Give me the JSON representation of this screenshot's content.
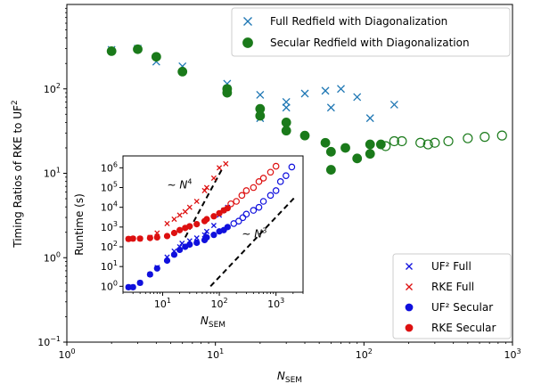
{
  "chart_data": [
    {
      "type": "scatter",
      "xscale": "log",
      "yscale": "log",
      "xlim": [
        1,
        1000
      ],
      "ylim": [
        0.1,
        1000
      ],
      "xlabel": "N_SEM",
      "ylabel": "Timing Ratios of RKE to UF²",
      "xticks": [
        {
          "v": 1,
          "label": "10^0"
        },
        {
          "v": 10,
          "label": "10^1"
        },
        {
          "v": 100,
          "label": "10^2"
        },
        {
          "v": 1000,
          "label": "10^3"
        }
      ],
      "yticks": [
        {
          "v": 0.1,
          "label": "10^-1"
        },
        {
          "v": 1,
          "label": "10^0"
        },
        {
          "v": 10,
          "label": "10^1"
        },
        {
          "v": 100,
          "label": "10^2"
        }
      ],
      "legend_position": "top-right",
      "series": [
        {
          "name": "Full Redfield with Diagonalization",
          "color": "#1f77b4",
          "marker": "x",
          "points": [
            [
              2,
              290
            ],
            [
              3,
              300
            ],
            [
              4,
              210
            ],
            [
              6,
              185
            ],
            [
              12,
              115
            ],
            [
              12,
              100
            ],
            [
              20,
              45
            ],
            [
              20,
              85
            ],
            [
              30,
              70
            ],
            [
              30,
              60
            ],
            [
              40,
              88
            ],
            [
              55,
              95
            ],
            [
              60,
              60
            ],
            [
              70,
              100
            ],
            [
              90,
              80
            ],
            [
              110,
              45
            ],
            [
              160,
              65
            ]
          ]
        },
        {
          "name": "Secular Redfield with Diagonalization",
          "color": "#1a7a1a",
          "marker": "o",
          "points": [
            [
              2,
              280
            ],
            [
              3,
              295
            ],
            [
              4,
              240
            ],
            [
              6,
              160
            ],
            [
              12,
              100
            ],
            [
              12,
              90
            ],
            [
              20,
              58
            ],
            [
              20,
              48
            ],
            [
              30,
              40
            ],
            [
              30,
              32
            ],
            [
              40,
              28
            ],
            [
              55,
              23
            ],
            [
              60,
              18
            ],
            [
              60,
              11
            ],
            [
              75,
              20
            ],
            [
              90,
              15
            ],
            [
              110,
              22
            ],
            [
              110,
              17
            ],
            [
              130,
              22
            ]
          ],
          "hollow_points": [
            [
              140,
              21
            ],
            [
              160,
              24
            ],
            [
              180,
              24
            ],
            [
              240,
              23
            ],
            [
              270,
              22
            ],
            [
              300,
              23
            ],
            [
              370,
              24
            ],
            [
              500,
              26
            ],
            [
              650,
              27
            ],
            [
              850,
              28
            ]
          ]
        }
      ]
    },
    {
      "type": "scatter",
      "xscale": "log",
      "yscale": "log",
      "xlim": [
        2,
        3000
      ],
      "ylim": [
        0.5,
        4000000
      ],
      "xlabel": "N_SEM",
      "ylabel": "Runtime (s)",
      "xticks": [
        {
          "v": 10,
          "label": "10^1"
        },
        {
          "v": 100,
          "label": "10^2"
        },
        {
          "v": 1000,
          "label": "10^3"
        }
      ],
      "yticks": [
        {
          "v": 1,
          "label": "10^0"
        },
        {
          "v": 10,
          "label": "10^1"
        },
        {
          "v": 100,
          "label": "10^2"
        },
        {
          "v": 1000,
          "label": "10^3"
        },
        {
          "v": 10000,
          "label": "10^4"
        },
        {
          "v": 100000,
          "label": "10^5"
        },
        {
          "v": 1000000,
          "label": "10^6"
        }
      ],
      "legend_position": "bottom-right",
      "annotations": [
        {
          "text": "∼ N^4",
          "at": [
            12,
            90000
          ]
        },
        {
          "text": "∼ N^3",
          "at": [
            250,
            300
          ]
        }
      ],
      "guide_lines": [
        {
          "label": "N4",
          "from": [
            25,
            300
          ],
          "to": [
            115,
            1000000
          ]
        },
        {
          "label": "N3",
          "from": [
            70,
            1
          ],
          "to": [
            2100,
            30000
          ]
        }
      ],
      "series": [
        {
          "name": "UF² Full",
          "color": "#1010dd",
          "marker": "x",
          "points": [
            [
              2.5,
              0.9
            ],
            [
              3,
              0.9
            ],
            [
              4,
              1.5
            ],
            [
              6,
              4
            ],
            [
              8,
              9
            ],
            [
              12,
              30
            ],
            [
              16,
              60
            ],
            [
              20,
              100
            ],
            [
              22,
              150
            ],
            [
              30,
              200
            ],
            [
              40,
              280
            ],
            [
              55,
              400
            ],
            [
              60,
              600
            ],
            [
              80,
              1200
            ],
            [
              100,
              4000
            ],
            [
              120,
              7000
            ],
            [
              140,
              10000
            ]
          ]
        },
        {
          "name": "RKE Full",
          "color": "#dd1010",
          "marker": "x",
          "points": [
            [
              2.5,
              250
            ],
            [
              3,
              260
            ],
            [
              4,
              260
            ],
            [
              6,
              300
            ],
            [
              8,
              500
            ],
            [
              12,
              1500
            ],
            [
              16,
              2500
            ],
            [
              20,
              4000
            ],
            [
              25,
              6000
            ],
            [
              30,
              10000
            ],
            [
              40,
              20000
            ],
            [
              55,
              70000
            ],
            [
              60,
              100000
            ],
            [
              80,
              300000
            ],
            [
              100,
              1000000
            ],
            [
              130,
              1600000
            ]
          ]
        },
        {
          "name": "UF² Secular",
          "color": "#1010dd",
          "marker": "o",
          "points": [
            [
              2.5,
              0.9
            ],
            [
              3,
              0.9
            ],
            [
              4,
              1.5
            ],
            [
              6,
              4
            ],
            [
              8,
              8
            ],
            [
              12,
              20
            ],
            [
              16,
              40
            ],
            [
              20,
              70
            ],
            [
              25,
              100
            ],
            [
              30,
              130
            ],
            [
              40,
              160
            ],
            [
              55,
              220
            ],
            [
              60,
              300
            ],
            [
              80,
              400
            ],
            [
              100,
              600
            ],
            [
              120,
              700
            ],
            [
              140,
              1000
            ]
          ],
          "hollow_points": [
            [
              180,
              1500
            ],
            [
              220,
              2000
            ],
            [
              260,
              3000
            ],
            [
              300,
              4500
            ],
            [
              400,
              7000
            ],
            [
              500,
              10000
            ],
            [
              600,
              20000
            ],
            [
              800,
              40000
            ],
            [
              1000,
              70000
            ],
            [
              1200,
              200000
            ],
            [
              1500,
              400000
            ],
            [
              1900,
              1100000
            ]
          ]
        },
        {
          "name": "RKE Secular",
          "color": "#dd1010",
          "marker": "o",
          "points": [
            [
              2.5,
              250
            ],
            [
              3,
              260
            ],
            [
              4,
              260
            ],
            [
              6,
              280
            ],
            [
              8,
              300
            ],
            [
              12,
              350
            ],
            [
              16,
              500
            ],
            [
              20,
              700
            ],
            [
              25,
              900
            ],
            [
              30,
              1100
            ],
            [
              40,
              1400
            ],
            [
              55,
              2000
            ],
            [
              60,
              2500
            ],
            [
              80,
              3500
            ],
            [
              100,
              5000
            ],
            [
              120,
              7000
            ],
            [
              140,
              9000
            ]
          ],
          "hollow_points": [
            [
              160,
              15000
            ],
            [
              200,
              20000
            ],
            [
              250,
              40000
            ],
            [
              300,
              70000
            ],
            [
              400,
              100000
            ],
            [
              500,
              200000
            ],
            [
              600,
              300000
            ],
            [
              800,
              600000
            ],
            [
              1000,
              1200000
            ]
          ]
        }
      ]
    }
  ]
}
